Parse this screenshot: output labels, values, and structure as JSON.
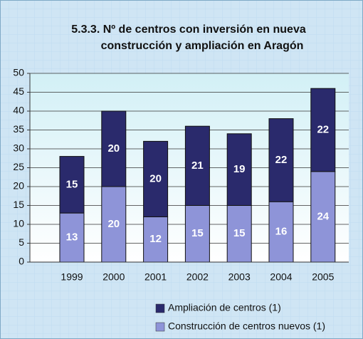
{
  "chart_data": {
    "type": "stacked-bar",
    "title": [
      "5.3.3. Nº de centros con inversión en nueva",
      "construcción y ampliación en Aragón"
    ],
    "categories": [
      "1999",
      "2000",
      "2001",
      "2002",
      "2003",
      "2004",
      "2005"
    ],
    "series": [
      {
        "name": "Construcción de centros nuevos (1)",
        "color": "#8e94d8",
        "values": [
          13,
          20,
          12,
          15,
          15,
          16,
          24
        ]
      },
      {
        "name": "Ampliación de centros (1)",
        "color": "#2a2a6c",
        "values": [
          15,
          20,
          20,
          21,
          19,
          22,
          22
        ]
      }
    ],
    "ylim": [
      0,
      50
    ],
    "yticks": [
      0,
      5,
      10,
      15,
      20,
      25,
      30,
      35,
      40,
      45,
      50
    ],
    "grid": true
  }
}
